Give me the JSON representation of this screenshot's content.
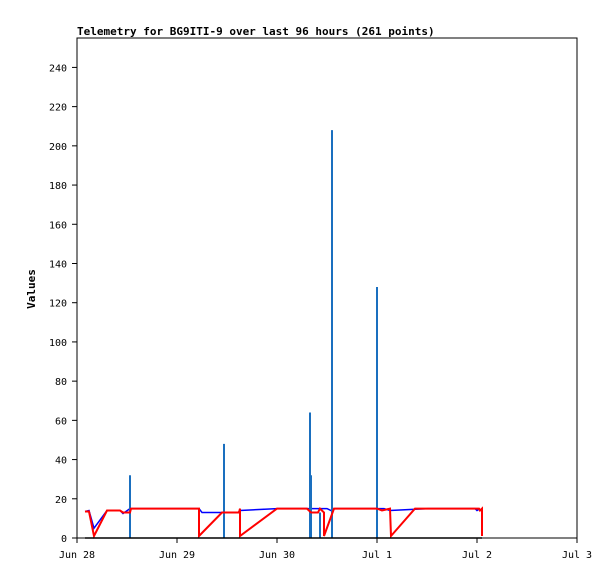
{
  "chart_data": {
    "type": "line",
    "title": "Telemetry for BG9ITI-9 over last 96 hours (261 points)",
    "xlabel": "",
    "ylabel": "Values",
    "xlim": [
      "Jun 28",
      "Jul 3"
    ],
    "ylim": [
      0,
      255
    ],
    "grid": false,
    "legend": "none",
    "x_ticks": [
      "Jun 28",
      "Jun 29",
      "Jun 30",
      "Jul 1",
      "Jul 2",
      "Jul 3"
    ],
    "y_ticks": [
      0,
      20,
      40,
      60,
      80,
      100,
      120,
      140,
      160,
      180,
      200,
      220,
      240
    ],
    "series": [
      {
        "color": "#0000ff",
        "style": "line",
        "points": [
          [
            0.08,
            13.5
          ],
          [
            0.12,
            14.0
          ],
          [
            0.17,
            5.0
          ],
          [
            0.3,
            14.0
          ],
          [
            0.43,
            14.0
          ],
          [
            0.46,
            12.5
          ],
          [
            0.53,
            15.0
          ],
          [
            0.61,
            15.0
          ],
          [
            1.22,
            15.0
          ],
          [
            1.25,
            13.0
          ],
          [
            1.61,
            13.0
          ],
          [
            1.63,
            14.0
          ],
          [
            2.0,
            15.0
          ],
          [
            2.43,
            15.0
          ],
          [
            2.5,
            15.0
          ],
          [
            2.54,
            14.0
          ],
          [
            2.58,
            15.0
          ],
          [
            3.07,
            15.0
          ],
          [
            3.13,
            14.0
          ],
          [
            3.51,
            15.0
          ],
          [
            3.98,
            15.0
          ],
          [
            4.0,
            14.0
          ],
          [
            4.03,
            15.0
          ]
        ]
      },
      {
        "color": "#1a6fbf",
        "style": "spikes",
        "points": [
          [
            0.53,
            32
          ],
          [
            1.47,
            48
          ],
          [
            2.33,
            64
          ],
          [
            2.34,
            32
          ],
          [
            2.43,
            13
          ],
          [
            2.55,
            208
          ],
          [
            3.0,
            128
          ],
          [
            3.51,
            0
          ]
        ]
      },
      {
        "color": "#ff0000",
        "style": "line",
        "points": [
          [
            0.08,
            13.5
          ],
          [
            0.12,
            13.5
          ],
          [
            0.17,
            1.0
          ],
          [
            0.3,
            14.0
          ],
          [
            0.43,
            14.0
          ],
          [
            0.46,
            13.0
          ],
          [
            0.53,
            13.0
          ],
          [
            0.54,
            15.0
          ],
          [
            1.22,
            15.0
          ],
          [
            1.22,
            1.0
          ],
          [
            1.45,
            13.0
          ],
          [
            1.62,
            13.0
          ],
          [
            1.63,
            15.0
          ],
          [
            1.63,
            1.0
          ],
          [
            2.0,
            15.0
          ],
          [
            2.3,
            15.0
          ],
          [
            2.34,
            13.0
          ],
          [
            2.41,
            13.0
          ],
          [
            2.43,
            15.0
          ],
          [
            2.47,
            13.0
          ],
          [
            2.47,
            1.0
          ],
          [
            2.57,
            15.0
          ],
          [
            3.0,
            15.0
          ],
          [
            3.05,
            14.0
          ],
          [
            3.13,
            15.0
          ],
          [
            3.14,
            1.0
          ],
          [
            3.38,
            15.0
          ],
          [
            4.02,
            15.0
          ],
          [
            4.03,
            14.0
          ],
          [
            4.05,
            15.0
          ],
          [
            4.05,
            1.0
          ]
        ]
      },
      {
        "color": "#000000",
        "style": "line",
        "points": [
          [
            0.08,
            0
          ],
          [
            4.05,
            0
          ]
        ]
      }
    ]
  }
}
